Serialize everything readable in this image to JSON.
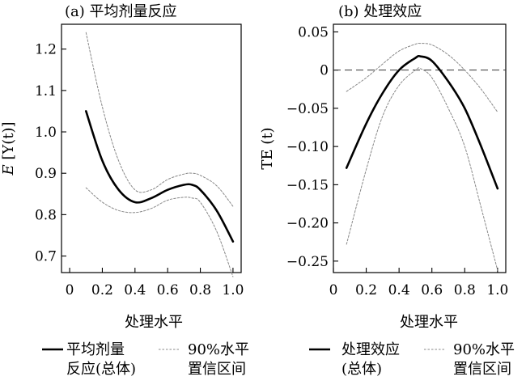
{
  "chart_data": [
    {
      "type": "line",
      "title": "(a) 平均剂量反应",
      "xlabel": "处理水平",
      "ylabel_prefix": "E",
      "ylabel_inner": "[Y(t)]",
      "xlim": [
        -0.05,
        1.05
      ],
      "ylim": [
        0.66,
        1.26
      ],
      "xticks": [
        0,
        0.2,
        0.4,
        0.6,
        0.8,
        1.0
      ],
      "xtick_labels": [
        "0",
        "0.2",
        "0.4",
        "0.6",
        "0.8",
        "1.0"
      ],
      "yticks": [
        0.7,
        0.8,
        0.9,
        1.0,
        1.1,
        1.2
      ],
      "ytick_labels": [
        "0.7",
        "0.8",
        "0.9",
        "1.0",
        "1.1",
        "1.2"
      ],
      "hline": null,
      "x": [
        0.1,
        0.2,
        0.3,
        0.4,
        0.5,
        0.6,
        0.7,
        0.75,
        0.8,
        0.9,
        1.0
      ],
      "series": [
        {
          "name": "平均剂量反应(总体)",
          "style": "solid",
          "values": [
            1.05,
            0.93,
            0.86,
            0.83,
            0.84,
            0.86,
            0.872,
            0.872,
            0.86,
            0.81,
            0.735
          ]
        },
        {
          "name": "90%水平置信区间(上)",
          "style": "dotted",
          "values": [
            1.24,
            1.06,
            0.93,
            0.86,
            0.86,
            0.885,
            0.898,
            0.9,
            0.895,
            0.87,
            0.82
          ]
        },
        {
          "name": "90%水平置信区间(下)",
          "style": "dotted",
          "values": [
            0.865,
            0.83,
            0.81,
            0.805,
            0.815,
            0.835,
            0.842,
            0.84,
            0.83,
            0.76,
            0.65
          ]
        }
      ],
      "legend": [
        {
          "style": "solid",
          "text": "平均剂量\n反应(总体)"
        },
        {
          "style": "dotted",
          "text": "90%水平\n置信区间"
        }
      ]
    },
    {
      "type": "line",
      "title": "(b) 处理效应",
      "xlabel": "处理水平",
      "ylabel_prefix": "TE",
      "ylabel_inner": "(t)",
      "xlim": [
        0.0,
        1.05
      ],
      "ylim": [
        -0.265,
        0.06
      ],
      "xticks": [
        0,
        0.2,
        0.4,
        0.6,
        0.8,
        1.0
      ],
      "xtick_labels": [
        "0",
        "0.2",
        "0.4",
        "0.6",
        "0.8",
        "1.0"
      ],
      "yticks": [
        -0.25,
        -0.2,
        -0.15,
        -0.1,
        -0.05,
        0,
        0.05
      ],
      "ytick_labels": [
        "−0.25",
        "−0.20",
        "−0.15",
        "−0.10",
        "−0.05",
        "0",
        "0.05"
      ],
      "hline": 0,
      "x": [
        0.08,
        0.2,
        0.3,
        0.4,
        0.5,
        0.53,
        0.6,
        0.7,
        0.8,
        0.9,
        1.0
      ],
      "series": [
        {
          "name": "处理效应(总体)",
          "style": "solid",
          "values": [
            -0.128,
            -0.07,
            -0.03,
            0.0,
            0.016,
            0.018,
            0.012,
            -0.015,
            -0.05,
            -0.1,
            -0.155
          ]
        },
        {
          "name": "90%水平置信区间(上)",
          "style": "dotted",
          "values": [
            -0.028,
            -0.01,
            0.008,
            0.025,
            0.034,
            0.035,
            0.033,
            0.02,
            0.0,
            -0.025,
            -0.055
          ]
        },
        {
          "name": "90%水平置信区间(下)",
          "style": "dotted",
          "values": [
            -0.228,
            -0.13,
            -0.06,
            -0.02,
            0.0,
            0.002,
            -0.01,
            -0.05,
            -0.1,
            -0.18,
            -0.262
          ]
        }
      ],
      "legend": [
        {
          "style": "solid",
          "text": "处理效应\n(总体)"
        },
        {
          "style": "dotted",
          "text": "90%水平\n置信区间"
        }
      ]
    }
  ]
}
